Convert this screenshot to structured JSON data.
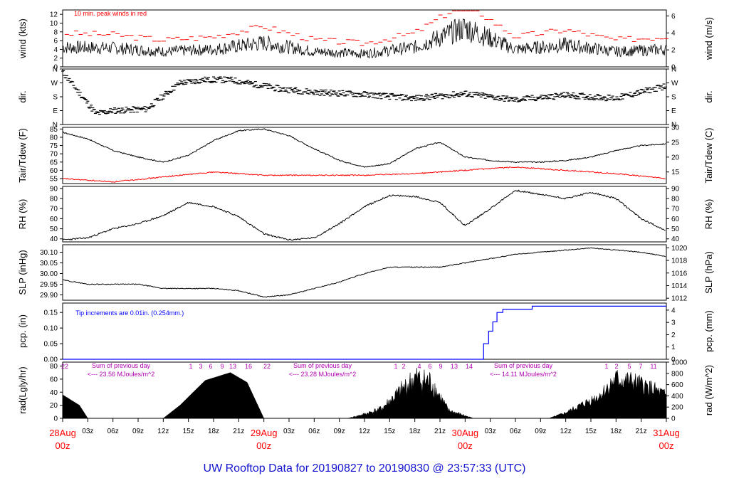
{
  "title": "UW Rooftop Data for 20190827  to  20190830 @ 23:57:33  (UTC)",
  "colors": {
    "primary": "#000000",
    "peak": "#ff0000",
    "dew": "#ff0000",
    "precip": "#0000ff",
    "annotation": "#b000b0",
    "date": "#ff0000",
    "title": "#1414d0"
  },
  "time_axis": {
    "hour_ticks": [
      "03z",
      "06z",
      "09z",
      "12z",
      "15z",
      "18z",
      "21z",
      "03z",
      "06z",
      "09z",
      "12z",
      "15z",
      "18z",
      "21z",
      "03z",
      "06z",
      "09z",
      "12z",
      "15z",
      "18z",
      "21z"
    ],
    "date_labels": [
      {
        "date": "28Aug",
        "hour": "00z"
      },
      {
        "date": "29Aug",
        "hour": "00z"
      },
      {
        "date": "30Aug",
        "hour": "00z"
      },
      {
        "date": "31Aug",
        "hour": "00z"
      }
    ]
  },
  "chart_data": [
    {
      "type": "line",
      "name": "wind",
      "ylabel": "wind (kts)",
      "ylabel_right": "wind (m/s)",
      "ylim": [
        0,
        13
      ],
      "yticks": [
        0,
        2,
        4,
        6,
        8,
        10,
        12
      ],
      "ylim_right": [
        0,
        6.7
      ],
      "yticks_right": [
        0,
        2,
        4,
        6
      ],
      "annotation": "10 min. peak winds in red",
      "x_hours": [
        0,
        6,
        12,
        18,
        24,
        30,
        36,
        42,
        48,
        54,
        60,
        66,
        72
      ],
      "y": [
        4.5,
        4.3,
        3.5,
        4.0,
        5.5,
        3.5,
        3.0,
        4.5,
        9.0,
        4.0,
        5.0,
        3.5,
        4.0
      ]
    },
    {
      "type": "scatter",
      "name": "dir",
      "ylabel": "dir.",
      "ytick_labels": [
        "N",
        "W",
        "S",
        "E",
        "N"
      ],
      "x_hours": [
        0,
        4,
        6,
        10,
        14,
        17,
        20,
        26,
        30,
        36,
        42,
        48,
        54,
        60,
        66,
        72
      ],
      "y_deg": [
        340,
        70,
        90,
        100,
        270,
        290,
        290,
        230,
        210,
        195,
        170,
        200,
        160,
        190,
        170,
        250
      ]
    },
    {
      "type": "line",
      "name": "temp",
      "ylabel": "Tair/Tdew (F)",
      "ylabel_right": "Tair/Tdew (C)",
      "ylim": [
        52,
        86
      ],
      "yticks": [
        55,
        60,
        65,
        70,
        75,
        80,
        85
      ],
      "yticks_right": [
        15,
        20,
        25,
        30
      ],
      "series": [
        {
          "x_hours": [
            0,
            3,
            6,
            9,
            12,
            15,
            18,
            21,
            24,
            27,
            30,
            33,
            36,
            39,
            42,
            45,
            48,
            51,
            54,
            57,
            60,
            63,
            66,
            69,
            72
          ],
          "y": [
            83,
            79,
            72,
            68,
            65,
            69,
            78,
            84,
            85,
            81,
            73,
            66,
            62,
            64,
            73,
            77,
            68,
            66,
            65,
            65,
            66,
            68,
            72,
            75,
            76
          ]
        },
        {
          "x_hours": [
            0,
            6,
            12,
            18,
            24,
            30,
            36,
            42,
            48,
            54,
            60,
            66,
            72
          ],
          "y": [
            55,
            53,
            56,
            59,
            57,
            57,
            57,
            58,
            60,
            62,
            60,
            58,
            55
          ]
        }
      ]
    },
    {
      "type": "line",
      "name": "rh",
      "ylabel": "RH (%)",
      "ylabel_right": "RH (%)",
      "ylim": [
        37,
        92
      ],
      "yticks": [
        40,
        50,
        60,
        70,
        80,
        90
      ],
      "x_hours": [
        0,
        3,
        6,
        9,
        12,
        15,
        18,
        21,
        24,
        27,
        30,
        33,
        36,
        39,
        42,
        45,
        48,
        51,
        54,
        57,
        60,
        63,
        66,
        69,
        72
      ],
      "y": [
        39,
        41,
        50,
        55,
        63,
        76,
        72,
        62,
        45,
        39,
        41,
        55,
        72,
        83,
        82,
        76,
        53,
        70,
        88,
        84,
        80,
        86,
        80,
        60,
        48
      ]
    },
    {
      "type": "line",
      "name": "slp",
      "ylabel": "SLP (inHg)",
      "ylabel_right": "SLP (hPa)",
      "ylim": [
        29.875,
        30.135
      ],
      "yticks": [
        29.9,
        29.95,
        30.0,
        30.05,
        30.1
      ],
      "yticks_right": [
        1012,
        1014,
        1016,
        1018,
        1020
      ],
      "x_hours": [
        0,
        3,
        6,
        9,
        12,
        15,
        18,
        21,
        24,
        27,
        30,
        33,
        36,
        39,
        42,
        45,
        48,
        51,
        54,
        57,
        60,
        63,
        66,
        69,
        72
      ],
      "y": [
        29.97,
        29.95,
        29.95,
        29.95,
        29.93,
        29.93,
        29.93,
        29.92,
        29.89,
        29.9,
        29.93,
        29.96,
        30.0,
        30.03,
        30.03,
        30.03,
        30.05,
        30.07,
        30.09,
        30.1,
        30.11,
        30.12,
        30.11,
        30.1,
        30.08
      ]
    },
    {
      "type": "line",
      "name": "pcp",
      "ylabel": "pcp. (in)",
      "ylabel_right": "pcp. (mm)",
      "ylim": [
        0,
        0.18
      ],
      "yticks": [
        0,
        0.05,
        0.1,
        0.15
      ],
      "yticks_right": [
        0,
        1,
        2,
        3,
        4
      ],
      "annotation": "Tip increments are 0.01in. (0.254mm.)",
      "x_hours": [
        0,
        49.5,
        50.2,
        50.8,
        51.3,
        51.8,
        52.5,
        54,
        56,
        60,
        72
      ],
      "y": [
        0,
        0,
        0.05,
        0.09,
        0.12,
        0.15,
        0.16,
        0.16,
        0.17,
        0.17,
        0.17
      ]
    },
    {
      "type": "area",
      "name": "rad",
      "ylabel": "rad(Lgly/hr)",
      "ylabel_right": "rad (W/m^2)",
      "ylim": [
        0,
        86
      ],
      "yticks": [
        0,
        20,
        40,
        60,
        80
      ],
      "yticks_right": [
        0,
        200,
        400,
        600,
        800,
        1000
      ],
      "daily_sums": [
        "Sum of previous day",
        "<--- 23.56 MJoules/m^2",
        "Sum of previous day",
        "<--- 23.28 MJoules/m^2",
        "Sum of previous day",
        "<--- 14.11 MJoules/m^2"
      ],
      "tick_numbers": [
        "22",
        "1",
        "3",
        "6",
        "9",
        "13",
        "16",
        "22",
        "1",
        "2",
        "4",
        "6",
        "9",
        "13",
        "14",
        "1",
        "2",
        "5",
        "7",
        "11"
      ],
      "x_hours": [
        0,
        2,
        3,
        12,
        14,
        17,
        20,
        22,
        24,
        26,
        34,
        36,
        38,
        42,
        44,
        45,
        46,
        48,
        49,
        58,
        60,
        62,
        64,
        66,
        68,
        70,
        72
      ],
      "y": [
        36,
        20,
        0,
        0,
        20,
        58,
        70,
        55,
        0,
        0,
        0,
        8,
        18,
        75,
        68,
        40,
        15,
        5,
        0,
        0,
        10,
        25,
        40,
        70,
        65,
        55,
        40
      ]
    }
  ]
}
